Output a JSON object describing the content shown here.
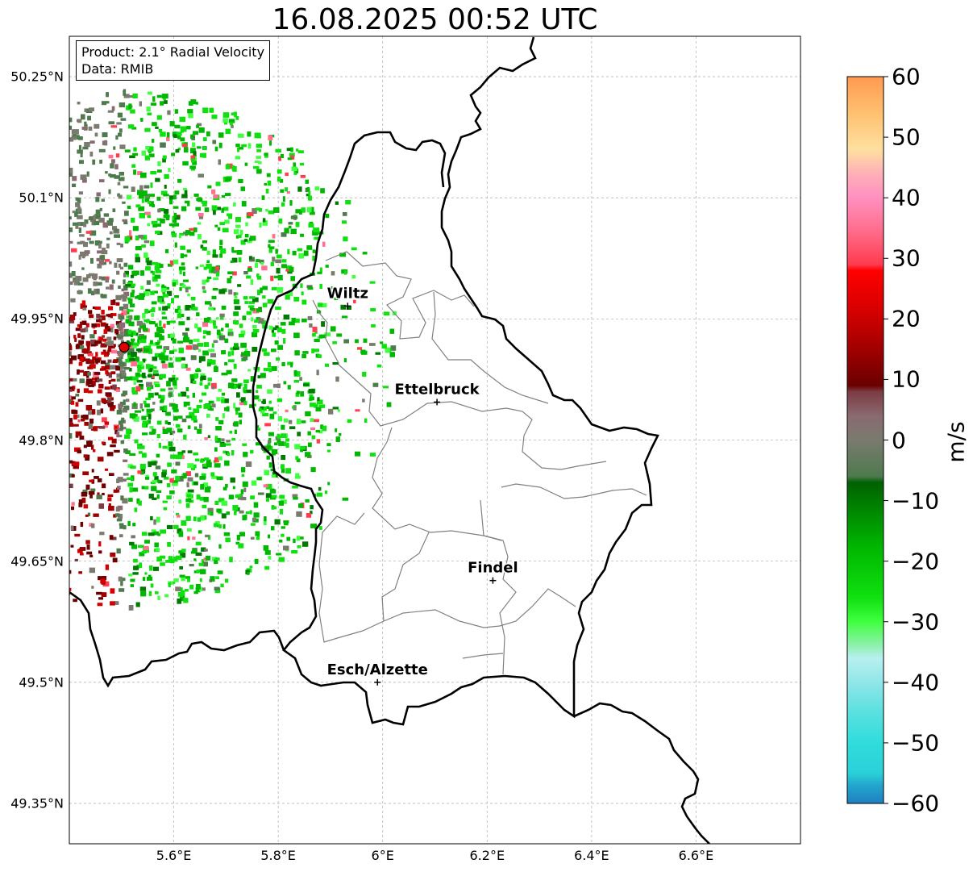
{
  "title": "16.08.2025 00:52 UTC",
  "info_box": {
    "product": "Product: 2.1° Radial Velocity",
    "data": "Data: RMIB"
  },
  "map": {
    "lat_ticks": [
      "50.25°N",
      "50.1°N",
      "49.95°N",
      "49.8°N",
      "49.65°N",
      "49.5°N",
      "49.35°N"
    ],
    "lon_ticks": [
      "5.6°E",
      "5.8°E",
      "6°E",
      "6.2°E",
      "6.4°E",
      "6.6°E"
    ],
    "lon_range": [
      5.4,
      6.8
    ],
    "lat_range": [
      49.3,
      50.3
    ],
    "radar_site": {
      "lon": 5.505,
      "lat": 49.915
    },
    "cities": [
      {
        "name": "Wiltz",
        "lon": 5.933,
        "lat": 49.966
      },
      {
        "name": "Ettelbruck",
        "lon": 6.104,
        "lat": 49.847
      },
      {
        "name": "Findel",
        "lon": 6.211,
        "lat": 49.626
      },
      {
        "name": "Esch/Alzette",
        "lon": 5.99,
        "lat": 49.5
      }
    ],
    "colors": {
      "country_border": "#000000",
      "canton_border": "#808080",
      "grid": "#b0b0b0",
      "radar_marker": "#e00000"
    }
  },
  "colorbar": {
    "label": "m/s",
    "min": -60,
    "max": 60,
    "ticks": [
      "60",
      "50",
      "40",
      "30",
      "20",
      "10",
      "0",
      "−10",
      "−20",
      "−30",
      "−40",
      "−50",
      "−60"
    ],
    "stops": [
      {
        "v": -60,
        "c": "#1f7fc0"
      },
      {
        "v": -57,
        "c": "#22a6cc"
      },
      {
        "v": -55,
        "c": "#2ad0d8"
      },
      {
        "v": -50,
        "c": "#30dcdc"
      },
      {
        "v": -45,
        "c": "#5ae0e0"
      },
      {
        "v": -40,
        "c": "#90e6e8"
      },
      {
        "v": -36,
        "c": "#b8f0f0"
      },
      {
        "v": -34,
        "c": "#90f0b0"
      },
      {
        "v": -30,
        "c": "#40ff40"
      },
      {
        "v": -26,
        "c": "#10e010"
      },
      {
        "v": -18,
        "c": "#00b800"
      },
      {
        "v": -10,
        "c": "#007a00"
      },
      {
        "v": -7,
        "c": "#006000"
      },
      {
        "v": -6,
        "c": "#4e7a4e"
      },
      {
        "v": 0,
        "c": "#7a7a6e"
      },
      {
        "v": 4,
        "c": "#8a6a70"
      },
      {
        "v": 8,
        "c": "#7a3c42"
      },
      {
        "v": 9,
        "c": "#6a0000"
      },
      {
        "v": 15,
        "c": "#a00000"
      },
      {
        "v": 21,
        "c": "#d40000"
      },
      {
        "v": 28,
        "c": "#ff0000"
      },
      {
        "v": 29,
        "c": "#ff3c50"
      },
      {
        "v": 35,
        "c": "#ff7090"
      },
      {
        "v": 40,
        "c": "#ff90c0"
      },
      {
        "v": 44,
        "c": "#ffb0b8"
      },
      {
        "v": 48,
        "c": "#ffe0a0"
      },
      {
        "v": 54,
        "c": "#ffc070"
      },
      {
        "v": 60,
        "c": "#ff9a50"
      }
    ]
  }
}
